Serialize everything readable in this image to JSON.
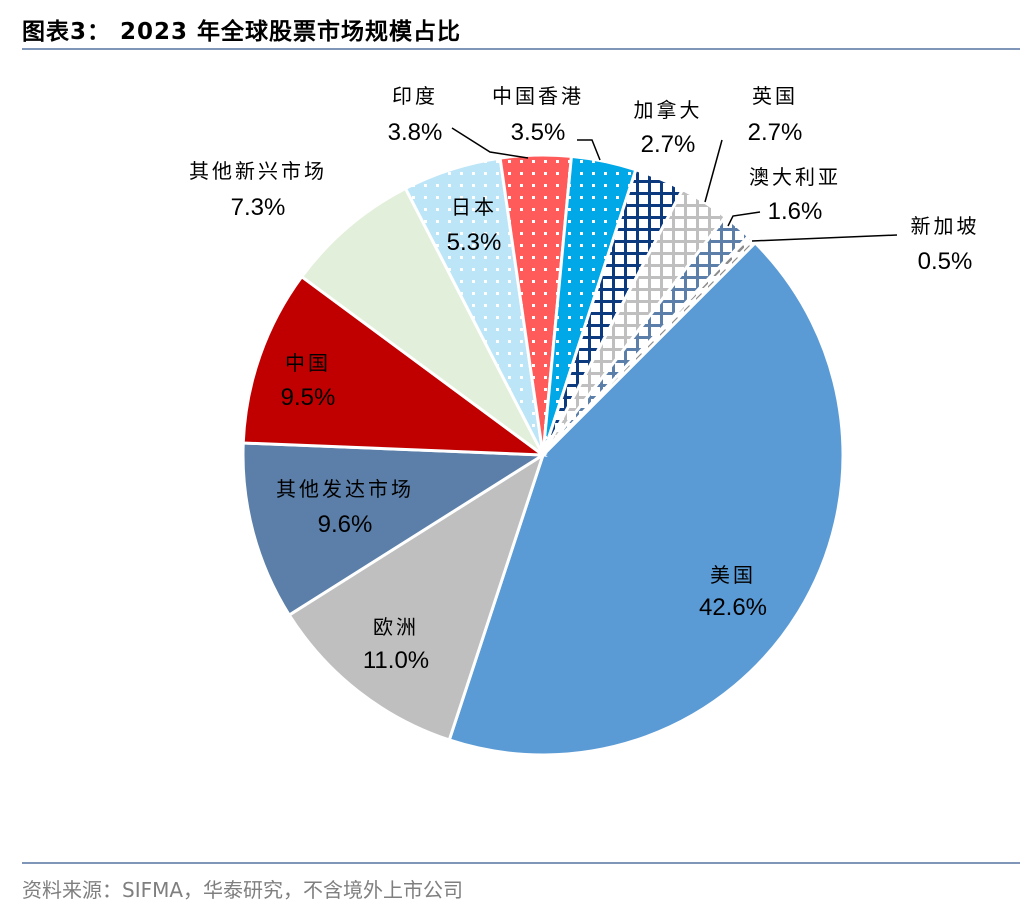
{
  "title": "图表3：  2023 年全球股票市场规模占比",
  "source": "资料来源：SIFMA，华泰研究，不含境外上市公司",
  "chart_data": {
    "type": "pie",
    "title": "2023 年全球股票市场规模占比",
    "direction": "clockwise",
    "slices": [
      {
        "label": "美国",
        "value": 42.6,
        "value_label": "42.6%",
        "color": "#5b9bd5",
        "pattern": "solid"
      },
      {
        "label": "欧洲",
        "value": 11.0,
        "value_label": "11.0%",
        "color": "#bfbfbf",
        "pattern": "solid"
      },
      {
        "label": "其他发达市场",
        "value": 9.6,
        "value_label": "9.6%",
        "color": "#5b7fa8",
        "pattern": "solid"
      },
      {
        "label": "中国",
        "value": 9.5,
        "value_label": "9.5%",
        "color": "#c00000",
        "pattern": "solid"
      },
      {
        "label": "其他新兴市场",
        "value": 7.3,
        "value_label": "7.3%",
        "color": "#e2efda",
        "pattern": "solid"
      },
      {
        "label": "日本",
        "value": 5.3,
        "value_label": "5.3%",
        "color": "#bde5f8",
        "pattern": "dots"
      },
      {
        "label": "印度",
        "value": 3.8,
        "value_label": "3.8%",
        "color": "#ff5b5b",
        "pattern": "dots"
      },
      {
        "label": "中国香港",
        "value": 3.5,
        "value_label": "3.5%",
        "color": "#00a8e8",
        "pattern": "dots"
      },
      {
        "label": "加拿大",
        "value": 2.7,
        "value_label": "2.7%",
        "color": "#0b3a7e",
        "pattern": "grid"
      },
      {
        "label": "英国",
        "value": 2.7,
        "value_label": "2.7%",
        "color": "#bfbfbf",
        "pattern": "grid"
      },
      {
        "label": "澳大利亚",
        "value": 1.6,
        "value_label": "1.6%",
        "color": "#5b7fa8",
        "pattern": "grid"
      },
      {
        "label": "新加坡",
        "value": 0.5,
        "value_label": "0.5%",
        "color": "#8c8c8c",
        "pattern": "dashes"
      }
    ]
  }
}
